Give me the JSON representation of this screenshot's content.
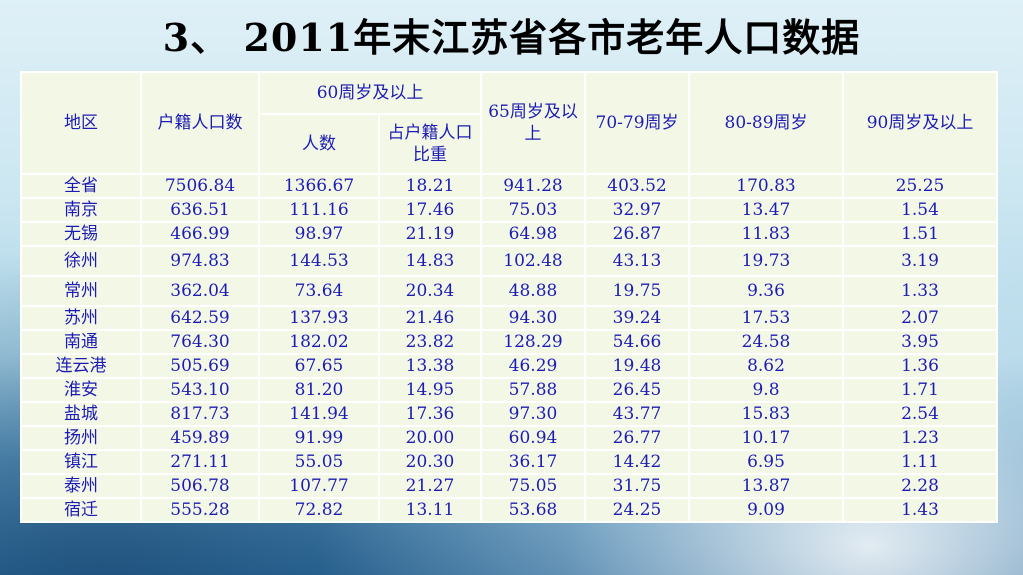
{
  "title": "3、 2011年末江苏省各市老年人口数据",
  "table": {
    "headers": {
      "region": "地区",
      "household_pop": "户籍人口数",
      "age60_group": "60周岁及以上",
      "age60_count": "人数",
      "age60_ratio": "占户籍人口比重",
      "age65": "65周岁及以上",
      "age70_79": "70-79周岁",
      "age80_89": "80-89周岁",
      "age90": "90周岁及以上"
    },
    "rows": [
      {
        "region": "全省",
        "household_pop": "7506.84",
        "age60_count": "1366.67",
        "age60_ratio": "18.21",
        "age65": "941.28",
        "age70_79": "403.52",
        "age80_89": "170.83",
        "age90": "25.25"
      },
      {
        "region": "南京",
        "household_pop": "636.51",
        "age60_count": "111.16",
        "age60_ratio": "17.46",
        "age65": "75.03",
        "age70_79": "32.97",
        "age80_89": "13.47",
        "age90": "1.54"
      },
      {
        "region": "无锡",
        "household_pop": "466.99",
        "age60_count": "98.97",
        "age60_ratio": "21.19",
        "age65": "64.98",
        "age70_79": "26.87",
        "age80_89": "11.83",
        "age90": "1.51"
      },
      {
        "region": "徐州",
        "household_pop": "974.83",
        "age60_count": "144.53",
        "age60_ratio": "14.83",
        "age65": "102.48",
        "age70_79": "43.13",
        "age80_89": "19.73",
        "age90": "3.19"
      },
      {
        "region": "常州",
        "household_pop": "362.04",
        "age60_count": "73.64",
        "age60_ratio": "20.34",
        "age65": "48.88",
        "age70_79": "19.75",
        "age80_89": "9.36",
        "age90": "1.33"
      },
      {
        "region": "苏州",
        "household_pop": "642.59",
        "age60_count": "137.93",
        "age60_ratio": "21.46",
        "age65": "94.30",
        "age70_79": "39.24",
        "age80_89": "17.53",
        "age90": "2.07"
      },
      {
        "region": "南通",
        "household_pop": "764.30",
        "age60_count": "182.02",
        "age60_ratio": "23.82",
        "age65": "128.29",
        "age70_79": "54.66",
        "age80_89": "24.58",
        "age90": "3.95"
      },
      {
        "region": "连云港",
        "household_pop": "505.69",
        "age60_count": "67.65",
        "age60_ratio": "13.38",
        "age65": "46.29",
        "age70_79": "19.48",
        "age80_89": "8.62",
        "age90": "1.36"
      },
      {
        "region": "淮安",
        "household_pop": "543.10",
        "age60_count": "81.20",
        "age60_ratio": "14.95",
        "age65": "57.88",
        "age70_79": "26.45",
        "age80_89": "9.8",
        "age90": "1.71"
      },
      {
        "region": "盐城",
        "household_pop": "817.73",
        "age60_count": "141.94",
        "age60_ratio": "17.36",
        "age65": "97.30",
        "age70_79": "43.77",
        "age80_89": "15.83",
        "age90": "2.54"
      },
      {
        "region": "扬州",
        "household_pop": "459.89",
        "age60_count": "91.99",
        "age60_ratio": "20.00",
        "age65": "60.94",
        "age70_79": "26.77",
        "age80_89": "10.17",
        "age90": "1.23"
      },
      {
        "region": "镇江",
        "household_pop": "271.11",
        "age60_count": "55.05",
        "age60_ratio": "20.30",
        "age65": "36.17",
        "age70_79": "14.42",
        "age80_89": "6.95",
        "age90": "1.11"
      },
      {
        "region": "泰州",
        "household_pop": "506.78",
        "age60_count": "107.77",
        "age60_ratio": "21.27",
        "age65": "75.05",
        "age70_79": "31.75",
        "age80_89": "13.87",
        "age90": "2.28"
      },
      {
        "region": "宿迁",
        "household_pop": "555.28",
        "age60_count": "72.82",
        "age60_ratio": "13.11",
        "age65": "53.68",
        "age70_79": "24.25",
        "age80_89": "9.09",
        "age90": "1.43"
      }
    ]
  },
  "colors": {
    "text": "#1c1cb4",
    "cell_background": "#f3f7e6",
    "grid_lines": "#ffffff",
    "title_text": "#000000"
  }
}
